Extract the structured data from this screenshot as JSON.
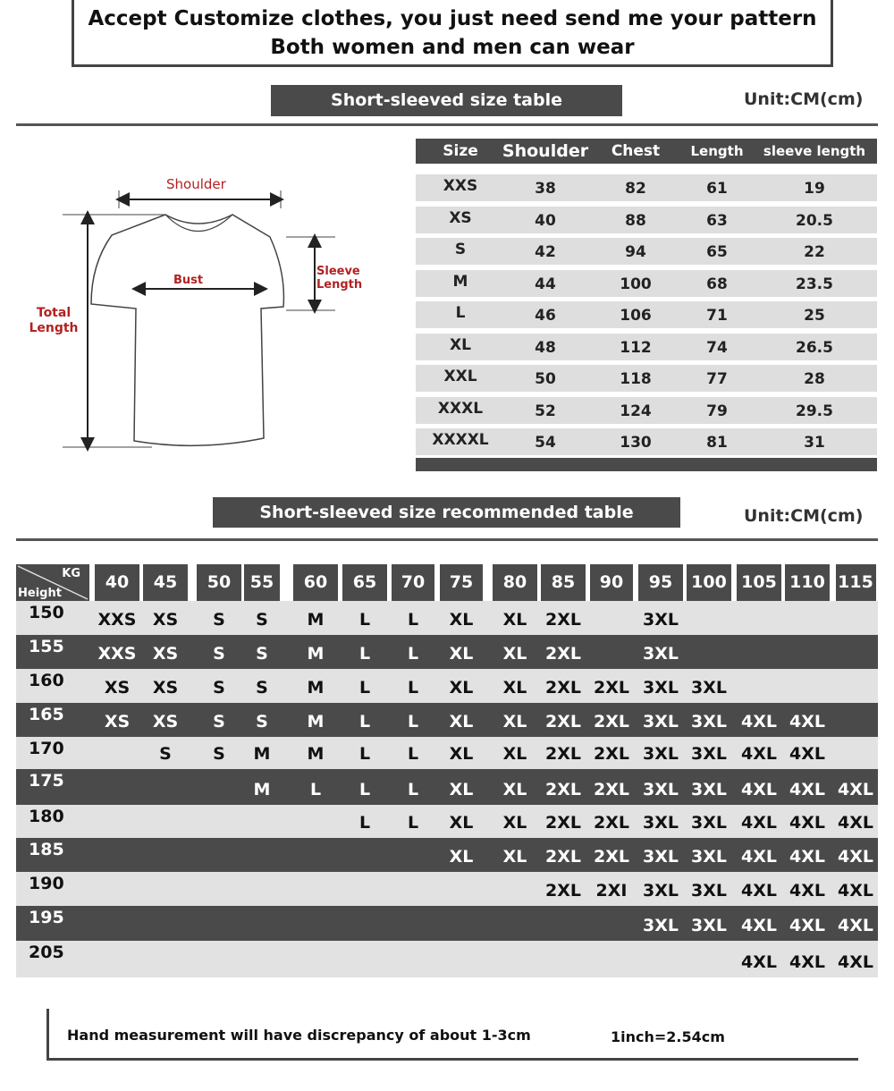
{
  "header": {
    "line1": "Accept Customize clothes, you just need send me your pattern",
    "line2": "Both women and men can wear"
  },
  "size_table": {
    "title": "Short-sleeved size  table",
    "unit": "Unit:CM(cm)",
    "columns": [
      "Size",
      "Shoulder",
      "Chest",
      "Length",
      "sleeve length"
    ],
    "rows": [
      [
        "XXS",
        "38",
        "82",
        "61",
        "19"
      ],
      [
        "XS",
        "40",
        "88",
        "63",
        "20.5"
      ],
      [
        "S",
        "42",
        "94",
        "65",
        "22"
      ],
      [
        "M",
        "44",
        "100",
        "68",
        "23.5"
      ],
      [
        "L",
        "46",
        "106",
        "71",
        "25"
      ],
      [
        "XL",
        "48",
        "112",
        "74",
        "26.5"
      ],
      [
        "XXL",
        "50",
        "118",
        "77",
        "28"
      ],
      [
        "XXXL",
        "52",
        "124",
        "79",
        "29.5"
      ],
      [
        "XXXXL",
        "54",
        "130",
        "81",
        "31"
      ]
    ]
  },
  "diagram": {
    "shoulder": "Shoulder",
    "bust": "Bust",
    "sleeve": "Sleeve Length",
    "total": "Total Length",
    "label_color": "#b22222"
  },
  "recommend_table": {
    "title": "Short-sleeved size recommended table",
    "unit": "Unit:CM(cm)",
    "corner_kg": "KG",
    "corner_height": "Height",
    "weights": [
      "40",
      "45",
      "50",
      "55",
      "60",
      "65",
      "70",
      "75",
      "80",
      "85",
      "90",
      "95",
      "100",
      "105",
      "110",
      "115"
    ],
    "rows": [
      {
        "height": "150",
        "sizes": [
          "XXS",
          "XS",
          "S",
          "S",
          "M",
          "L",
          "L",
          "XL",
          "XL",
          "2XL",
          "",
          "3XL",
          "",
          "",
          "",
          ""
        ]
      },
      {
        "height": "155",
        "sizes": [
          "XXS",
          "XS",
          "S",
          "S",
          "M",
          "L",
          "L",
          "XL",
          "XL",
          "2XL",
          "",
          "3XL",
          "",
          "",
          "",
          ""
        ]
      },
      {
        "height": "160",
        "sizes": [
          "XS",
          "XS",
          "S",
          "S",
          "M",
          "L",
          "L",
          "XL",
          "XL",
          "2XL",
          "2XL",
          "3XL",
          "3XL",
          "",
          "",
          ""
        ]
      },
      {
        "height": "165",
        "sizes": [
          "XS",
          "XS",
          "S",
          "S",
          "M",
          "L",
          "L",
          "XL",
          "XL",
          "2XL",
          "2XL",
          "3XL",
          "3XL",
          "4XL",
          "4XL",
          ""
        ]
      },
      {
        "height": "170",
        "sizes": [
          "",
          "S",
          "S",
          "M",
          "M",
          "L",
          "L",
          "XL",
          "XL",
          "2XL",
          "2XL",
          "3XL",
          "3XL",
          "4XL",
          "4XL",
          ""
        ]
      },
      {
        "height": "175",
        "sizes": [
          "",
          "",
          "",
          "M",
          "L",
          "L",
          "L",
          "XL",
          "XL",
          "2XL",
          "2XL",
          "3XL",
          "3XL",
          "4XL",
          "4XL",
          "4XL"
        ]
      },
      {
        "height": "180",
        "sizes": [
          "",
          "",
          "",
          "",
          "",
          "L",
          "L",
          "XL",
          "XL",
          "2XL",
          "2XL",
          "3XL",
          "3XL",
          "4XL",
          "4XL",
          "4XL"
        ]
      },
      {
        "height": "185",
        "sizes": [
          "",
          "",
          "",
          "",
          "",
          "",
          "",
          "XL",
          "XL",
          "2XL",
          "2XL",
          "3XL",
          "3XL",
          "4XL",
          "4XL",
          "4XL"
        ]
      },
      {
        "height": "190",
        "sizes": [
          "",
          "",
          "",
          "",
          "",
          "",
          "",
          "",
          "",
          "2XL",
          "2XI",
          "3XL",
          "3XL",
          "4XL",
          "4XL",
          "4XL"
        ]
      },
      {
        "height": "195",
        "sizes": [
          "",
          "",
          "",
          "",
          "",
          "",
          "",
          "",
          "",
          "",
          "",
          "3XL",
          "3XL",
          "4XL",
          "4XL",
          "4XL"
        ]
      },
      {
        "height": "205",
        "sizes": [
          "",
          "",
          "",
          "",
          "",
          "",
          "",
          "",
          "",
          "",
          "",
          "",
          "",
          "4XL",
          "4XL",
          "4XL"
        ]
      }
    ]
  },
  "footer": {
    "note": "Hand measurement will have discrepancy of about  1-3cm",
    "conversion": "1inch=2.54cm"
  }
}
